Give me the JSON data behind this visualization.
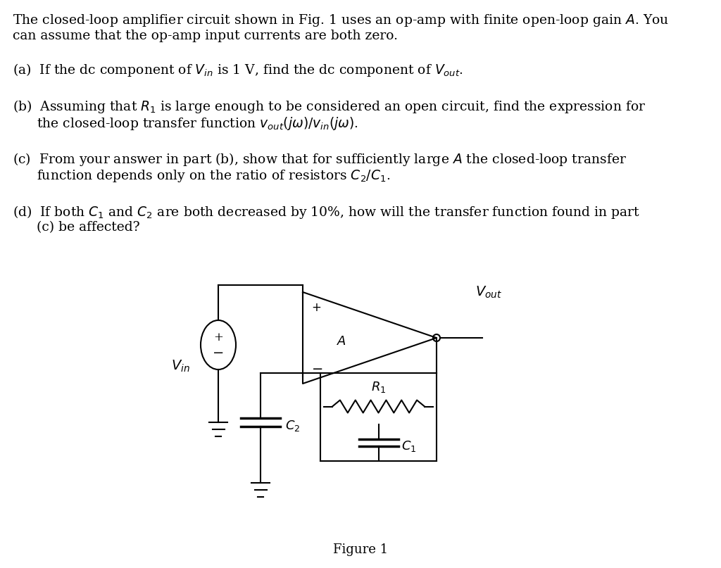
{
  "bg_color": "#ffffff",
  "text_color": "#000000",
  "fig_width": 10.24,
  "fig_height": 8.07,
  "figure_label": "Figure 1",
  "line_color": "#000000",
  "line_width": 1.5
}
